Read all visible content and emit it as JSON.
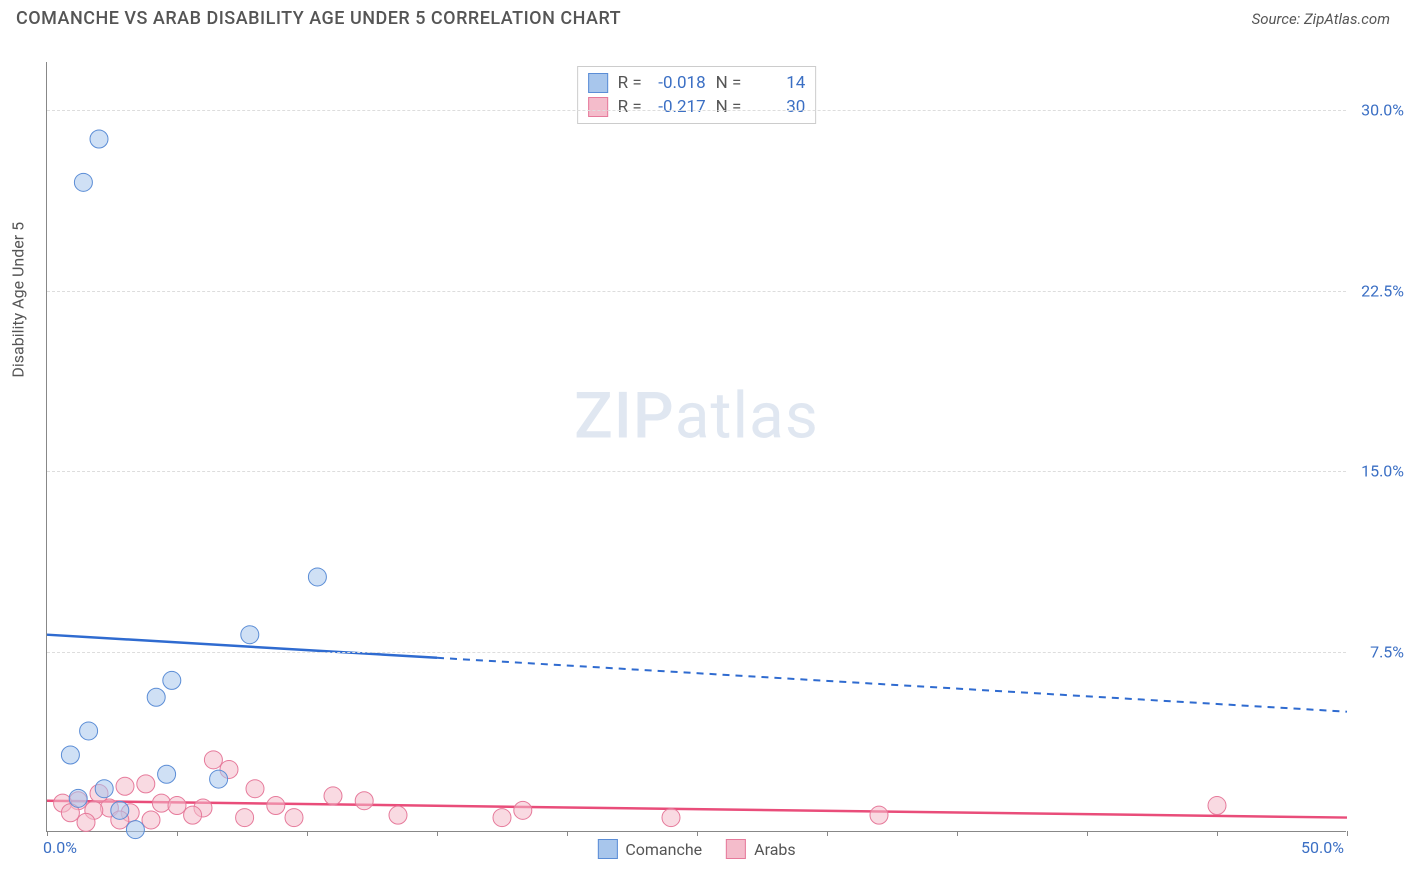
{
  "header": {
    "title": "COMANCHE VS ARAB DISABILITY AGE UNDER 5 CORRELATION CHART",
    "source": "Source: ZipAtlas.com"
  },
  "chart": {
    "type": "scatter",
    "y_axis_label": "Disability Age Under 5",
    "watermark": "ZIPatlas",
    "background_color": "#ffffff",
    "grid_color": "#dddddd",
    "axis_color": "#888888",
    "tick_label_color": "#3b6fc4",
    "xlim": [
      0,
      50
    ],
    "ylim": [
      0,
      32
    ],
    "x_ticks": [
      0,
      5,
      10,
      15,
      20,
      25,
      30,
      35,
      40,
      45,
      50
    ],
    "x_tick_labels": {
      "0": "0.0%",
      "50": "50.0%"
    },
    "y_ticks": [
      7.5,
      15.0,
      22.5,
      30.0
    ],
    "y_tick_labels": [
      "7.5%",
      "15.0%",
      "22.5%",
      "30.0%"
    ],
    "marker_radius": 9,
    "marker_opacity": 0.55,
    "series": {
      "comanche": {
        "label": "Comanche",
        "fill": "#a8c6ec",
        "stroke": "#5b8dd6",
        "R": "-0.018",
        "N": "14",
        "trend": {
          "color": "#2f6bd0",
          "y_at_xmin": 8.2,
          "y_at_xmax": 5.0,
          "solid_until_x": 15
        },
        "points": [
          {
            "x": 2.0,
            "y": 28.8
          },
          {
            "x": 1.4,
            "y": 27.0
          },
          {
            "x": 10.4,
            "y": 10.6
          },
          {
            "x": 7.8,
            "y": 8.2
          },
          {
            "x": 4.8,
            "y": 6.3
          },
          {
            "x": 4.2,
            "y": 5.6
          },
          {
            "x": 1.6,
            "y": 4.2
          },
          {
            "x": 0.9,
            "y": 3.2
          },
          {
            "x": 4.6,
            "y": 2.4
          },
          {
            "x": 6.6,
            "y": 2.2
          },
          {
            "x": 2.2,
            "y": 1.8
          },
          {
            "x": 1.2,
            "y": 1.4
          },
          {
            "x": 2.8,
            "y": 0.9
          },
          {
            "x": 3.4,
            "y": 0.1
          }
        ]
      },
      "arabs": {
        "label": "Arabs",
        "fill": "#f4bccb",
        "stroke": "#e67a9b",
        "R": "-0.217",
        "N": "30",
        "trend": {
          "color": "#e94d7a",
          "y_at_xmin": 1.3,
          "y_at_xmax": 0.6,
          "solid_until_x": 50
        },
        "points": [
          {
            "x": 6.4,
            "y": 3.0
          },
          {
            "x": 7.0,
            "y": 2.6
          },
          {
            "x": 3.8,
            "y": 2.0
          },
          {
            "x": 3.0,
            "y": 1.9
          },
          {
            "x": 8.0,
            "y": 1.8
          },
          {
            "x": 2.0,
            "y": 1.6
          },
          {
            "x": 11.0,
            "y": 1.5
          },
          {
            "x": 12.2,
            "y": 1.3
          },
          {
            "x": 1.2,
            "y": 1.3
          },
          {
            "x": 0.6,
            "y": 1.2
          },
          {
            "x": 4.4,
            "y": 1.2
          },
          {
            "x": 5.0,
            "y": 1.1
          },
          {
            "x": 8.8,
            "y": 1.1
          },
          {
            "x": 6.0,
            "y": 1.0
          },
          {
            "x": 2.4,
            "y": 1.0
          },
          {
            "x": 1.8,
            "y": 0.9
          },
          {
            "x": 0.9,
            "y": 0.8
          },
          {
            "x": 3.2,
            "y": 0.8
          },
          {
            "x": 5.6,
            "y": 0.7
          },
          {
            "x": 13.5,
            "y": 0.7
          },
          {
            "x": 9.5,
            "y": 0.6
          },
          {
            "x": 7.6,
            "y": 0.6
          },
          {
            "x": 2.8,
            "y": 0.5
          },
          {
            "x": 4.0,
            "y": 0.5
          },
          {
            "x": 17.5,
            "y": 0.6
          },
          {
            "x": 18.3,
            "y": 0.9
          },
          {
            "x": 24.0,
            "y": 0.6
          },
          {
            "x": 32.0,
            "y": 0.7
          },
          {
            "x": 45.0,
            "y": 1.1
          },
          {
            "x": 1.5,
            "y": 0.4
          }
        ]
      }
    },
    "legend_top_labels": {
      "R": "R =",
      "N": "N ="
    },
    "legend_bottom_order": [
      "comanche",
      "arabs"
    ]
  }
}
